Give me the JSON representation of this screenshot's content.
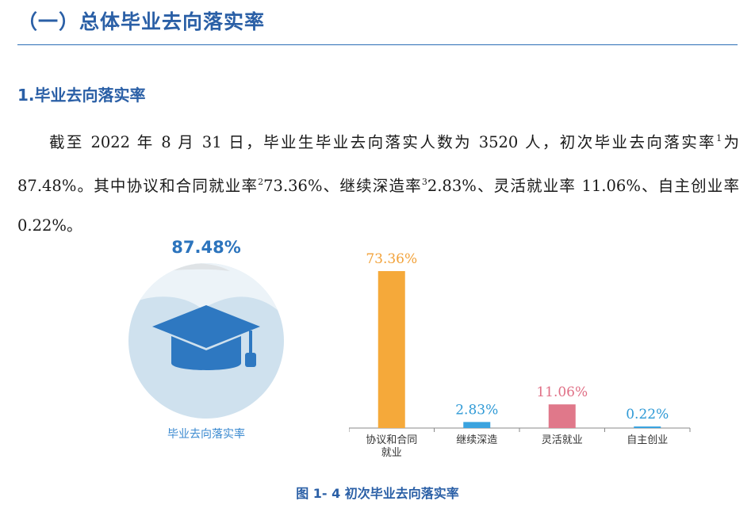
{
  "section_title": "（一）总体毕业去向落实率",
  "subsection_title": "1.毕业去向落实率",
  "paragraph": {
    "p1": "截至 2022 年 8 月 31 日，毕业生毕业去向落实人数为 3520 人，初次毕业去向落实率",
    "sup1": "1",
    "p2": "为 87.48%。其中协议和合同就业率",
    "sup2": "2",
    "p3": "73.36%、继续深造率",
    "sup3": "3",
    "p4": "2.83%、灵活就业率 11.06%、自主创业率 0.22%。"
  },
  "overall_rate": "87.48%",
  "overall_rate_label": "毕业去向落实率",
  "chart_data": {
    "type": "bar",
    "categories": [
      "协议和合同\n就业",
      "继续深造",
      "灵活就业",
      "自主创业"
    ],
    "values": [
      73.36,
      2.83,
      11.06,
      0.22
    ],
    "value_labels": [
      "73.36%",
      "2.83%",
      "11.06%",
      "0.22%"
    ],
    "colors": [
      "#f5a93a",
      "#3aa3df",
      "#e0788a",
      "#3aa3df"
    ],
    "label_colors": [
      "#f2a23a",
      "#2f9ad6",
      "#e07086",
      "#2f9ad6"
    ],
    "ylim": [
      0,
      80
    ],
    "title": "",
    "xlabel": "",
    "ylabel": ""
  },
  "caption": "图 1- 4 初次毕业去向落实率"
}
